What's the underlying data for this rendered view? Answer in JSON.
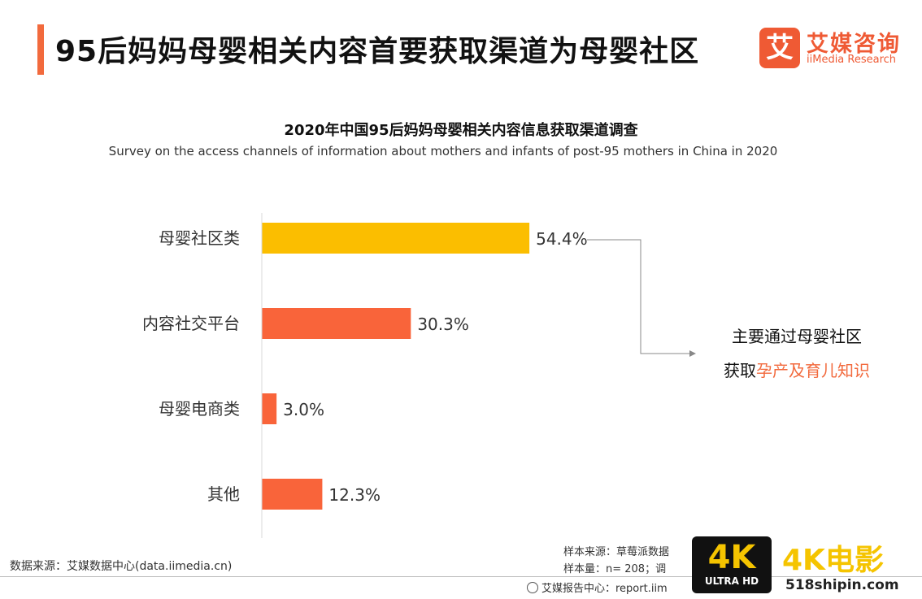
{
  "header": {
    "title": "95后妈妈母婴相关内容首要获取渠道为母婴社区",
    "logo_mark": "艾",
    "logo_cn": "艾媒咨询",
    "logo_en": "iiMedia Research",
    "accent_color": "#f26a3d"
  },
  "chart_data": {
    "type": "bar",
    "orientation": "horizontal",
    "title": "2020年中国95后妈妈母婴相关内容信息获取渠道调查",
    "subtitle": "Survey on the access channels of information about mothers and infants of post-95 mothers in China in 2020",
    "categories": [
      "母婴社区类",
      "内容社交平台",
      "母婴电商类",
      "其他"
    ],
    "values": [
      54.4,
      30.3,
      3.0,
      12.3
    ],
    "value_labels": [
      "54.4%",
      "30.3%",
      "3.0%",
      "12.3%"
    ],
    "unit": "%",
    "colors": [
      "#fbbe00",
      "#f9643a",
      "#f9643a",
      "#f9643a"
    ],
    "xlim": [
      0,
      100
    ],
    "grid": false,
    "legend": "none"
  },
  "annotation": {
    "line1": "主要通过母婴社区",
    "line2_prefix": "获取",
    "line2_highlight": "孕产及育儿知识"
  },
  "footer": {
    "source_left": "数据来源：艾媒数据中心(data.iimedia.cn)",
    "sample_source": "样本来源：草莓派数据",
    "sample_size": "样本量：n= 208；调",
    "report_center": "艾媒报告中心：report.iim"
  },
  "watermark": {
    "badge_main": "4K",
    "badge_sub": "ULTRA HD",
    "title": "4K电影",
    "url": "518shipin.com"
  }
}
